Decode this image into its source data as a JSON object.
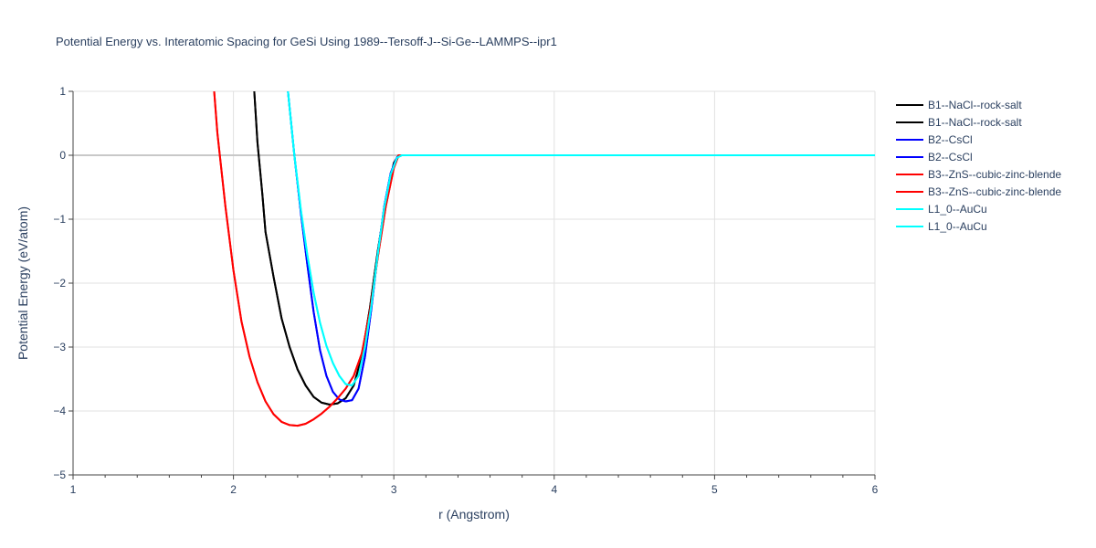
{
  "chart_data": {
    "type": "line",
    "title": "Potential Energy vs. Interatomic Spacing for GeSi Using 1989--Tersoff-J--Si-Ge--LAMMPS--ipr1",
    "xlabel": "r (Angstrom)",
    "ylabel": "Potential Energy (eV/atom)",
    "xlim": [
      1,
      6
    ],
    "ylim": [
      -5,
      1
    ],
    "xticks": [
      1,
      2,
      3,
      4,
      5,
      6
    ],
    "xtick_labels": [
      "1",
      "2",
      "3",
      "4",
      "5",
      "6"
    ],
    "yticks": [
      -5,
      -4,
      -3,
      -2,
      -1,
      0,
      1
    ],
    "ytick_labels": [
      "−5",
      "−4",
      "−3",
      "−2",
      "−1",
      "0",
      "1"
    ],
    "grid": true,
    "legend_position": "right",
    "series": [
      {
        "name": "B1--NaCl--rock-salt",
        "color": "#000000",
        "x": [
          2.13,
          2.15,
          2.18,
          2.2,
          2.25,
          2.3,
          2.35,
          2.4,
          2.45,
          2.5,
          2.55,
          2.6,
          2.65,
          2.7,
          2.75,
          2.8,
          2.85,
          2.9,
          2.95,
          3.0,
          3.03,
          3.05,
          3.1,
          3.5,
          4.0,
          4.5,
          5.0,
          5.5,
          6.0
        ],
        "y": [
          1.0,
          0.2,
          -0.6,
          -1.2,
          -1.9,
          -2.55,
          -3.0,
          -3.35,
          -3.6,
          -3.78,
          -3.87,
          -3.9,
          -3.88,
          -3.8,
          -3.6,
          -3.15,
          -2.4,
          -1.5,
          -0.7,
          -0.12,
          0.0,
          0.0,
          0.0,
          0.0,
          0.0,
          0.0,
          0.0,
          0.0,
          0.0
        ]
      },
      {
        "name": "B1--NaCl--rock-salt",
        "color": "#000000",
        "x": [
          2.13,
          2.15,
          2.18,
          2.2,
          2.25,
          2.3,
          2.35,
          2.4,
          2.45,
          2.5,
          2.55,
          2.6,
          2.65,
          2.7,
          2.75,
          2.8,
          2.85,
          2.9,
          2.95,
          3.0,
          3.03,
          3.05,
          3.1,
          3.5,
          4.0,
          4.5,
          5.0,
          5.5,
          6.0
        ],
        "y": [
          1.0,
          0.2,
          -0.6,
          -1.2,
          -1.9,
          -2.55,
          -3.0,
          -3.35,
          -3.6,
          -3.78,
          -3.87,
          -3.9,
          -3.88,
          -3.8,
          -3.6,
          -3.15,
          -2.4,
          -1.5,
          -0.7,
          -0.12,
          0.0,
          0.0,
          0.0,
          0.0,
          0.0,
          0.0,
          0.0,
          0.0,
          0.0
        ]
      },
      {
        "name": "B2--CsCl",
        "color": "#0000ff",
        "x": [
          2.34,
          2.38,
          2.42,
          2.46,
          2.5,
          2.54,
          2.58,
          2.62,
          2.66,
          2.7,
          2.74,
          2.78,
          2.82,
          2.86,
          2.9,
          2.94,
          2.98,
          3.02,
          3.05,
          3.1,
          3.5,
          4.0,
          4.5,
          5.0,
          5.5,
          6.0
        ],
        "y": [
          1.0,
          0.0,
          -0.9,
          -1.7,
          -2.45,
          -3.05,
          -3.45,
          -3.7,
          -3.82,
          -3.85,
          -3.83,
          -3.65,
          -3.15,
          -2.4,
          -1.55,
          -0.8,
          -0.28,
          -0.03,
          0.0,
          0.0,
          0.0,
          0.0,
          0.0,
          0.0,
          0.0,
          0.0
        ]
      },
      {
        "name": "B2--CsCl",
        "color": "#0000ff",
        "x": [
          2.34,
          2.38,
          2.42,
          2.46,
          2.5,
          2.54,
          2.58,
          2.62,
          2.66,
          2.7,
          2.74,
          2.78,
          2.82,
          2.86,
          2.9,
          2.94,
          2.98,
          3.02,
          3.05,
          3.1,
          3.5,
          4.0,
          4.5,
          5.0,
          5.5,
          6.0
        ],
        "y": [
          1.0,
          0.0,
          -0.9,
          -1.7,
          -2.45,
          -3.05,
          -3.45,
          -3.7,
          -3.82,
          -3.85,
          -3.83,
          -3.65,
          -3.15,
          -2.4,
          -1.55,
          -0.8,
          -0.28,
          -0.03,
          0.0,
          0.0,
          0.0,
          0.0,
          0.0,
          0.0,
          0.0,
          0.0
        ]
      },
      {
        "name": "B3--ZnS--cubic-zinc-blende",
        "color": "#ff0000",
        "x": [
          1.88,
          1.9,
          1.95,
          2.0,
          2.05,
          2.1,
          2.15,
          2.2,
          2.25,
          2.3,
          2.35,
          2.4,
          2.45,
          2.5,
          2.55,
          2.6,
          2.65,
          2.7,
          2.75,
          2.8,
          2.85,
          2.9,
          2.95,
          3.0,
          3.03,
          3.05,
          3.1,
          3.5,
          4.0,
          4.5,
          5.0,
          5.5,
          6.0
        ],
        "y": [
          1.0,
          0.35,
          -0.8,
          -1.8,
          -2.6,
          -3.15,
          -3.55,
          -3.85,
          -4.05,
          -4.17,
          -4.22,
          -4.23,
          -4.2,
          -4.13,
          -4.04,
          -3.93,
          -3.8,
          -3.65,
          -3.45,
          -3.1,
          -2.45,
          -1.6,
          -0.8,
          -0.2,
          0.0,
          0.0,
          0.0,
          0.0,
          0.0,
          0.0,
          0.0,
          0.0,
          0.0
        ]
      },
      {
        "name": "B3--ZnS--cubic-zinc-blende",
        "color": "#ff0000",
        "x": [
          1.88,
          1.9,
          1.95,
          2.0,
          2.05,
          2.1,
          2.15,
          2.2,
          2.25,
          2.3,
          2.35,
          2.4,
          2.45,
          2.5,
          2.55,
          2.6,
          2.65,
          2.7,
          2.75,
          2.8,
          2.85,
          2.9,
          2.95,
          3.0,
          3.03,
          3.05,
          3.1,
          3.5,
          4.0,
          4.5,
          5.0,
          5.5,
          6.0
        ],
        "y": [
          1.0,
          0.35,
          -0.8,
          -1.8,
          -2.6,
          -3.15,
          -3.55,
          -3.85,
          -4.05,
          -4.17,
          -4.22,
          -4.23,
          -4.2,
          -4.13,
          -4.04,
          -3.93,
          -3.8,
          -3.65,
          -3.45,
          -3.1,
          -2.45,
          -1.6,
          -0.8,
          -0.2,
          0.0,
          0.0,
          0.0,
          0.0,
          0.0,
          0.0,
          0.0,
          0.0,
          0.0
        ]
      },
      {
        "name": "L1_0--AuCu",
        "color": "#00ffff",
        "x": [
          2.34,
          2.38,
          2.42,
          2.46,
          2.5,
          2.54,
          2.58,
          2.62,
          2.66,
          2.7,
          2.74,
          2.78,
          2.82,
          2.86,
          2.9,
          2.94,
          2.98,
          3.02,
          3.05,
          3.1,
          3.5,
          4.0,
          4.5,
          5.0,
          5.5,
          6.0
        ],
        "y": [
          1.0,
          0.0,
          -0.85,
          -1.55,
          -2.15,
          -2.62,
          -2.98,
          -3.25,
          -3.45,
          -3.58,
          -3.6,
          -3.45,
          -3.0,
          -2.35,
          -1.55,
          -0.82,
          -0.3,
          -0.04,
          0.0,
          0.0,
          0.0,
          0.0,
          0.0,
          0.0,
          0.0,
          0.0
        ]
      },
      {
        "name": "L1_0--AuCu",
        "color": "#00ffff",
        "x": [
          2.34,
          2.38,
          2.42,
          2.46,
          2.5,
          2.54,
          2.58,
          2.62,
          2.66,
          2.7,
          2.74,
          2.78,
          2.82,
          2.86,
          2.9,
          2.94,
          2.98,
          3.02,
          3.05,
          3.1,
          3.5,
          4.0,
          4.5,
          5.0,
          5.5,
          6.0
        ],
        "y": [
          1.0,
          0.0,
          -0.85,
          -1.55,
          -2.15,
          -2.62,
          -2.98,
          -3.25,
          -3.45,
          -3.58,
          -3.6,
          -3.45,
          -3.0,
          -2.35,
          -1.55,
          -0.82,
          -0.3,
          -0.04,
          0.0,
          0.0,
          0.0,
          0.0,
          0.0,
          0.0,
          0.0,
          0.0
        ]
      }
    ]
  }
}
